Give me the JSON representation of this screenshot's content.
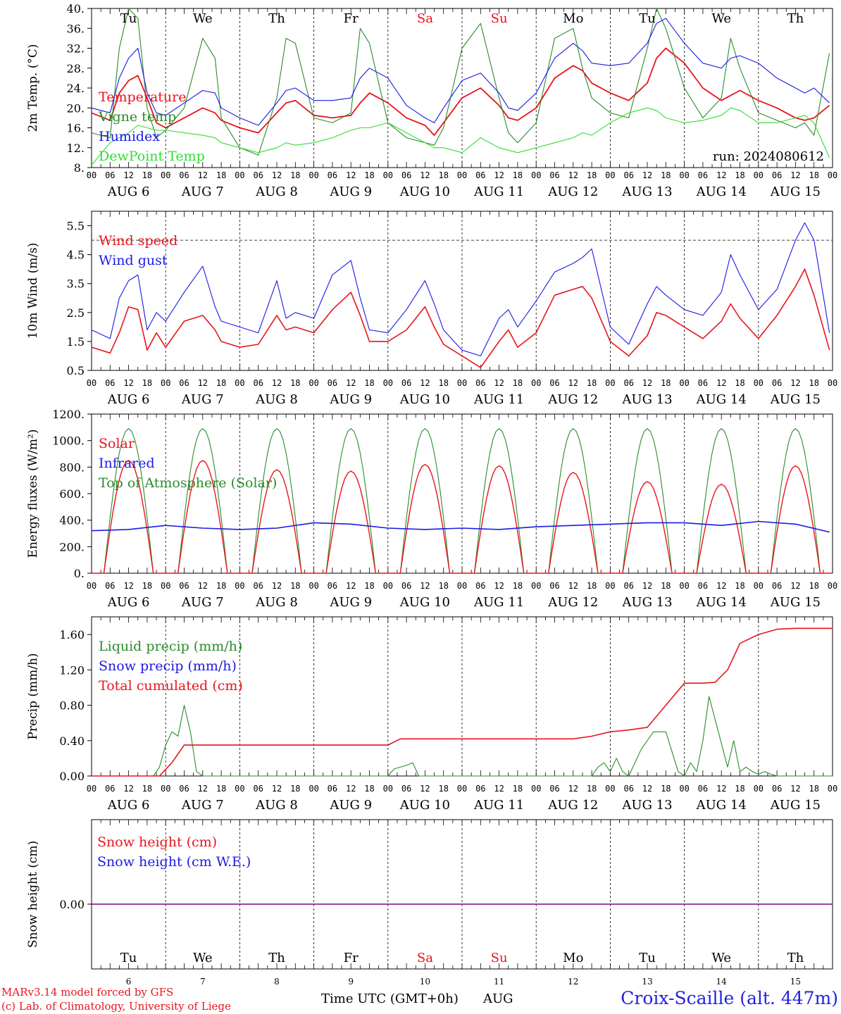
{
  "colors": {
    "red": "#e8141c",
    "green": "#2a8c2a",
    "blue": "#1a1ae6",
    "light_green": "#33dd33",
    "black": "#000000",
    "purple": "#800080",
    "title_blue": "#2222dd",
    "weekend": "#e8141c"
  },
  "run_label": "run: 2024080612",
  "hour_ticks": [
    "00",
    "06",
    "12",
    "18"
  ],
  "date_labels": [
    "AUG  6",
    "AUG  7",
    "AUG  8",
    "AUG  9",
    "AUG 10",
    "AUG 11",
    "AUG 12",
    "AUG 13",
    "AUG 14",
    "AUG 15"
  ],
  "days": [
    {
      "abbr": "Tu",
      "num": "6",
      "weekend": false
    },
    {
      "abbr": "We",
      "num": "7",
      "weekend": false
    },
    {
      "abbr": "Th",
      "num": "8",
      "weekend": false
    },
    {
      "abbr": "Fr",
      "num": "9",
      "weekend": false
    },
    {
      "abbr": "Sa",
      "num": "10",
      "weekend": true
    },
    {
      "abbr": "Su",
      "num": "11",
      "weekend": true
    },
    {
      "abbr": "Mo",
      "num": "12",
      "weekend": false
    },
    {
      "abbr": "Tu",
      "num": "13",
      "weekend": false
    },
    {
      "abbr": "We",
      "num": "14",
      "weekend": false
    },
    {
      "abbr": "Th",
      "num": "15",
      "weekend": false
    }
  ],
  "footer": {
    "model_line": "MARv3.14 model forced by GFS",
    "copyright_line": "(c) Lab. of Climatology, University of Liege",
    "x_axis_title": "Time UTC (GMT+0h)",
    "month": "AUG",
    "station": "Croix-Scaille (alt. 447m)"
  },
  "chart_data": [
    {
      "id": "temp",
      "type": "line",
      "ylabel": "2m Temp. (°C)",
      "ylim": [
        8,
        40
      ],
      "yticks": [
        8,
        12,
        16,
        20,
        24,
        28,
        32,
        36,
        40
      ],
      "ytick_labels": [
        "8.",
        "12.",
        "16.",
        "20.",
        "24.",
        "28.",
        "32.",
        "36.",
        "40."
      ],
      "x_unit": "hours since AUG 6 00 UTC",
      "series": [
        {
          "name": "Temperature",
          "color": "red",
          "x": [
            0,
            6,
            9,
            12,
            15,
            18,
            21,
            24,
            30,
            36,
            40,
            42,
            48,
            54,
            60,
            63,
            66,
            72,
            78,
            84,
            87,
            90,
            96,
            102,
            108,
            111,
            114,
            120,
            126,
            132,
            135,
            138,
            144,
            150,
            156,
            159,
            162,
            168,
            174,
            180,
            183,
            186,
            192,
            198,
            204,
            207,
            210,
            216,
            222,
            228,
            231,
            234,
            239
          ],
          "y": [
            19,
            17.5,
            23,
            25.5,
            26.5,
            22,
            17,
            16,
            18,
            20,
            19,
            17.5,
            16,
            15,
            19,
            21,
            21.5,
            18.5,
            18,
            18.5,
            21,
            23,
            21,
            18,
            16.5,
            14.5,
            17,
            22,
            24,
            20.5,
            18,
            17.5,
            20,
            26,
            28.5,
            27.5,
            25,
            23,
            21.5,
            25,
            30,
            32,
            29,
            24,
            21.5,
            22.5,
            23.5,
            21.5,
            20,
            18,
            17.5,
            18,
            20.5
          ]
        },
        {
          "name": "Vigne temp",
          "color": "green",
          "x": [
            0,
            6,
            9,
            12,
            15,
            18,
            21,
            24,
            30,
            36,
            40,
            42,
            48,
            54,
            60,
            63,
            66,
            72,
            78,
            84,
            87,
            90,
            96,
            102,
            108,
            111,
            114,
            120,
            126,
            132,
            135,
            138,
            144,
            150,
            156,
            159,
            162,
            168,
            174,
            180,
            183,
            186,
            192,
            198,
            204,
            207,
            210,
            216,
            222,
            228,
            231,
            234,
            239
          ],
          "y": [
            15,
            14,
            32,
            40,
            38,
            20,
            14,
            15.5,
            20,
            34,
            30,
            18,
            12,
            10.5,
            22,
            34,
            33,
            18,
            17,
            19,
            36,
            33,
            17,
            14,
            13,
            12.5,
            16,
            32,
            37,
            22,
            15,
            13,
            17,
            34,
            36,
            28,
            22,
            19,
            18,
            32,
            40,
            36,
            24,
            18,
            22,
            34,
            28,
            19,
            17.5,
            16,
            17,
            14.5,
            31
          ]
        },
        {
          "name": "Humidex",
          "color": "blue",
          "x": [
            0,
            6,
            9,
            12,
            15,
            18,
            21,
            24,
            30,
            36,
            40,
            42,
            48,
            54,
            60,
            63,
            66,
            72,
            78,
            84,
            87,
            90,
            96,
            102,
            108,
            111,
            114,
            120,
            126,
            132,
            135,
            138,
            144,
            150,
            156,
            159,
            162,
            168,
            174,
            180,
            183,
            186,
            192,
            198,
            204,
            207,
            210,
            216,
            222,
            228,
            231,
            234,
            239
          ],
          "y": [
            20,
            19,
            26,
            30,
            32,
            23,
            19,
            18.5,
            21,
            23.5,
            23,
            20,
            18,
            16.5,
            21,
            23.5,
            24,
            21.5,
            21.5,
            22,
            26,
            28,
            26,
            20.5,
            18,
            17,
            20,
            25.5,
            27,
            23,
            20,
            19.5,
            23,
            30,
            33,
            31.5,
            29,
            28.5,
            29,
            33,
            37,
            38,
            33,
            29,
            28,
            30,
            30.5,
            29,
            26,
            24,
            23,
            24,
            21
          ]
        },
        {
          "name": "DewPoint Temp",
          "color": "light_green",
          "x": [
            0,
            6,
            9,
            12,
            15,
            18,
            21,
            24,
            30,
            36,
            40,
            42,
            48,
            54,
            60,
            63,
            66,
            72,
            78,
            84,
            87,
            90,
            96,
            102,
            108,
            111,
            114,
            120,
            126,
            132,
            135,
            138,
            144,
            150,
            156,
            159,
            162,
            168,
            174,
            180,
            183,
            186,
            192,
            198,
            204,
            207,
            210,
            216,
            222,
            228,
            231,
            234,
            239
          ],
          "y": [
            8.5,
            13,
            14,
            15,
            16.5,
            16,
            15.5,
            15.5,
            15,
            14.5,
            14,
            13,
            12,
            11,
            12,
            13,
            12.5,
            13,
            14,
            15.5,
            16,
            16,
            17,
            15,
            13,
            12,
            12,
            11,
            14,
            12,
            11.5,
            11,
            12,
            13,
            14,
            15,
            14.5,
            17,
            19,
            20,
            19.5,
            18,
            17,
            17.5,
            18.5,
            20,
            19.5,
            17,
            17,
            18,
            18.5,
            17,
            10
          ]
        }
      ]
    },
    {
      "id": "wind",
      "type": "line",
      "ylabel": "10m Wind (m/s)",
      "ylim": [
        0.5,
        6
      ],
      "yticks": [
        0.5,
        1.5,
        2.5,
        3.5,
        4.5,
        5.5
      ],
      "ytick_labels": [
        "0.5",
        "1.5",
        "2.5",
        "3.5",
        "4.5",
        "5.5"
      ],
      "ref_line": 5,
      "series": [
        {
          "name": "Wind speed",
          "color": "red",
          "x": [
            0,
            6,
            9,
            12,
            15,
            18,
            21,
            24,
            30,
            36,
            40,
            42,
            48,
            54,
            60,
            63,
            66,
            72,
            78,
            84,
            87,
            90,
            96,
            102,
            108,
            111,
            114,
            120,
            126,
            132,
            135,
            138,
            144,
            150,
            156,
            159,
            162,
            168,
            174,
            180,
            183,
            186,
            192,
            198,
            204,
            207,
            210,
            216,
            222,
            228,
            231,
            234,
            239
          ],
          "y": [
            1.3,
            1.1,
            1.8,
            2.7,
            2.6,
            1.2,
            1.8,
            1.3,
            2.2,
            2.4,
            1.9,
            1.5,
            1.3,
            1.4,
            2.4,
            1.9,
            2.0,
            1.8,
            2.6,
            3.2,
            2.4,
            1.5,
            1.5,
            1.9,
            2.7,
            2.0,
            1.4,
            1.0,
            0.6,
            1.5,
            1.9,
            1.3,
            1.8,
            3.1,
            3.3,
            3.4,
            3.0,
            1.5,
            1.0,
            1.7,
            2.5,
            2.4,
            2.0,
            1.6,
            2.2,
            2.8,
            2.3,
            1.6,
            2.4,
            3.4,
            4.0,
            3.1,
            1.2
          ]
        },
        {
          "name": "Wind gust",
          "color": "blue",
          "x": [
            0,
            6,
            9,
            12,
            15,
            18,
            21,
            24,
            30,
            36,
            40,
            42,
            48,
            54,
            60,
            63,
            66,
            72,
            78,
            84,
            87,
            90,
            96,
            102,
            108,
            111,
            114,
            120,
            126,
            132,
            135,
            138,
            144,
            150,
            156,
            159,
            162,
            168,
            174,
            180,
            183,
            186,
            192,
            198,
            204,
            207,
            210,
            216,
            222,
            228,
            231,
            234,
            239
          ],
          "y": [
            1.9,
            1.6,
            3.0,
            3.6,
            3.8,
            1.9,
            2.5,
            2.2,
            3.2,
            4.1,
            2.7,
            2.2,
            2.0,
            1.8,
            3.6,
            2.3,
            2.5,
            2.3,
            3.8,
            4.3,
            3.0,
            1.9,
            1.8,
            2.6,
            3.6,
            2.8,
            1.9,
            1.2,
            1.0,
            2.3,
            2.6,
            2.0,
            2.9,
            3.9,
            4.2,
            4.4,
            4.7,
            2.0,
            1.4,
            2.8,
            3.4,
            3.1,
            2.6,
            2.4,
            3.2,
            4.5,
            3.8,
            2.6,
            3.3,
            5.0,
            5.6,
            5.0,
            1.8
          ]
        }
      ]
    },
    {
      "id": "energy",
      "type": "line",
      "ylabel": "Energy fluxes (W/m²)",
      "ylim": [
        0,
        1200
      ],
      "yticks": [
        0,
        200,
        400,
        600,
        800,
        1000,
        1200
      ],
      "ytick_labels": [
        "0.",
        "200.",
        "400.",
        "600.",
        "800.",
        "1000.",
        "1200."
      ],
      "solar_peaks": [
        850,
        850,
        780,
        770,
        820,
        810,
        760,
        690,
        670,
        810
      ],
      "toa_peak": 1090,
      "day_hours": [
        4,
        20
      ],
      "series": [
        {
          "name": "Solar",
          "color": "red"
        },
        {
          "name": "Infrared",
          "color": "blue",
          "x": [
            0,
            12,
            24,
            36,
            48,
            60,
            72,
            84,
            96,
            108,
            120,
            132,
            144,
            156,
            168,
            180,
            192,
            204,
            216,
            228,
            239
          ],
          "y": [
            320,
            330,
            360,
            340,
            330,
            340,
            380,
            370,
            340,
            330,
            340,
            330,
            350,
            360,
            370,
            380,
            380,
            360,
            390,
            370,
            310
          ]
        },
        {
          "name": "Top of Atmosphere (Solar)",
          "color": "green"
        }
      ]
    },
    {
      "id": "precip",
      "type": "line",
      "ylabel": "Precip (mm/h)",
      "ylim": [
        0,
        1.8
      ],
      "yticks": [
        0,
        0.4,
        0.8,
        1.2,
        1.6
      ],
      "ytick_labels": [
        "0.00",
        "0.40",
        "0.80",
        "1.20",
        "1.60"
      ],
      "series": [
        {
          "name": "Liquid precip (mm/h)",
          "color": "green",
          "x": [
            0,
            20,
            22,
            24,
            26,
            28,
            30,
            32,
            34,
            36,
            96,
            98,
            100,
            102,
            104,
            106,
            162,
            164,
            166,
            168,
            170,
            172,
            174,
            178,
            182,
            186,
            190,
            192,
            194,
            196,
            198,
            200,
            206,
            208,
            210,
            212,
            214,
            216,
            218,
            220,
            222,
            240
          ],
          "y": [
            0,
            0,
            0.1,
            0.35,
            0.5,
            0.45,
            0.8,
            0.5,
            0.05,
            0,
            0,
            0.08,
            0.1,
            0.12,
            0.15,
            0,
            0,
            0.1,
            0.15,
            0.05,
            0.2,
            0.05,
            0,
            0.3,
            0.5,
            0.5,
            0.05,
            0,
            0.15,
            0.05,
            0.4,
            0.9,
            0.1,
            0.4,
            0.05,
            0.1,
            0.05,
            0.02,
            0.05,
            0.02,
            0,
            0
          ]
        },
        {
          "name": "Snow precip (mm/h)",
          "color": "blue"
        },
        {
          "name": "Total cumulated (cm)",
          "color": "red",
          "x": [
            0,
            22,
            26,
            30,
            48,
            84,
            96,
            100,
            144,
            156,
            162,
            168,
            174,
            180,
            186,
            192,
            198,
            202,
            206,
            210,
            216,
            222,
            228,
            240
          ],
          "y": [
            0,
            0,
            0.15,
            0.35,
            0.35,
            0.35,
            0.35,
            0.42,
            0.42,
            0.42,
            0.45,
            0.5,
            0.52,
            0.55,
            0.8,
            1.05,
            1.05,
            1.06,
            1.2,
            1.5,
            1.6,
            1.66,
            1.67,
            1.67
          ]
        }
      ]
    },
    {
      "id": "snow",
      "type": "line",
      "ylabel": "Snow height (cm)",
      "yticks": [
        0
      ],
      "ytick_labels": [
        "0.00"
      ],
      "series": [
        {
          "name": "Snow height (cm)",
          "color": "red",
          "x": [
            0,
            240
          ],
          "y": [
            0,
            0
          ]
        },
        {
          "name": "Snow height (cm W.E.)",
          "color": "blue",
          "x": [
            0,
            240
          ],
          "y": [
            0,
            0
          ]
        }
      ]
    }
  ]
}
